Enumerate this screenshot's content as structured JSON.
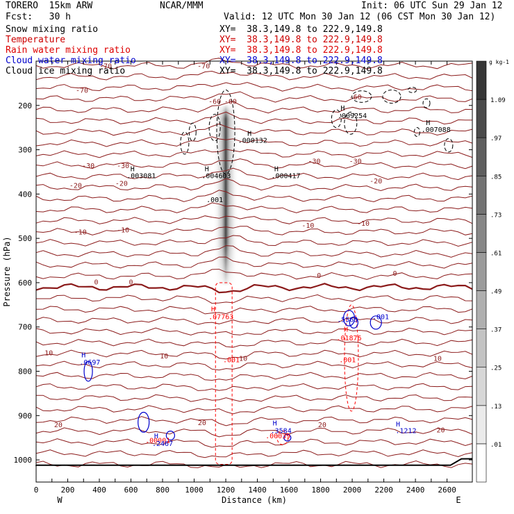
{
  "header": {
    "model": "TORERO  15km ARW",
    "center": "NCAR/MMM",
    "init": "Init: 06 UTC Sun 29 Jan 12",
    "fcst": "Fcst:   30 h",
    "valid": "Valid: 12 UTC Mon 30 Jan 12 (06 CST Mon 30 Jan 12)"
  },
  "colors": {
    "black": "#000000",
    "temperature": "#8b1a1a",
    "rain": "#ff0000",
    "cloud_water": "#0000cc",
    "frame": "#000000"
  },
  "legend": [
    {
      "label": "Snow mixing ratio",
      "xy": "XY=  38.3,149.8 to 222.9,149.8",
      "color": "#000000"
    },
    {
      "label": "Temperature",
      "xy": "XY=  38.3,149.8 to 222.9,149.8",
      "color": "#cc0000"
    },
    {
      "label": "Rain water mixing ratio",
      "xy": "XY=  38.3,149.8 to 222.9,149.8",
      "color": "#dd0000"
    },
    {
      "label": "Cloud water mixing ratio",
      "xy": "XY=  38.3,149.8 to 222.9,149.8",
      "color": "#0000cc"
    },
    {
      "label": "Cloud ice mixing ratio",
      "xy": "XY=  38.3,149.8 to 222.9,149.8",
      "color": "#000000"
    }
  ],
  "chart_data": {
    "type": "cross-section",
    "xlabel": "Distance (km)",
    "ylabel": "Pressure (hPa)",
    "x_ticks": [
      0,
      100,
      200,
      300,
      400,
      500,
      600,
      700,
      800,
      900,
      1000,
      1100,
      1200,
      1300,
      1400,
      1500,
      1600,
      1700,
      1800,
      1900,
      2000,
      2100,
      2200,
      2300,
      2400,
      2500,
      2600
    ],
    "x_tick_labels": [
      "0",
      "200",
      "400",
      "600",
      "800",
      "1000",
      "1200",
      "1400",
      "1600",
      "1800",
      "2000",
      "2200",
      "2400",
      "2600"
    ],
    "x_tick_label_values": [
      0,
      200,
      400,
      600,
      800,
      1000,
      1200,
      1400,
      1600,
      1800,
      2000,
      2200,
      2400,
      2600
    ],
    "xlim": [
      0,
      2760
    ],
    "y_ticks": [
      200,
      300,
      400,
      500,
      600,
      700,
      800,
      900,
      1000
    ],
    "ylim": [
      1050,
      100
    ],
    "left_end": "W",
    "right_end": "E",
    "colorbar": {
      "unit": "g kg-1",
      "labels": [
        ".01",
        ".13",
        ".25",
        ".37",
        ".49",
        ".61",
        ".73",
        ".85",
        ".97",
        "1.09"
      ],
      "values": [
        0.01,
        0.13,
        0.25,
        0.37,
        0.49,
        0.61,
        0.73,
        0.85,
        0.97,
        1.09
      ]
    },
    "temperature_labels": [
      {
        "x": 440,
        "p": 110,
        "text": "-70"
      },
      {
        "x": 1060,
        "p": 110,
        "text": "-70"
      },
      {
        "x": 1130,
        "p": 190,
        "text": "-60"
      },
      {
        "x": 1230,
        "p": 190,
        "text": "-60"
      },
      {
        "x": 2020,
        "p": 180,
        "text": "-60"
      },
      {
        "x": 290,
        "p": 165,
        "text": "-70"
      },
      {
        "x": 330,
        "p": 335,
        "text": "-30"
      },
      {
        "x": 550,
        "p": 335,
        "text": "-30"
      },
      {
        "x": 1760,
        "p": 325,
        "text": "-30"
      },
      {
        "x": 2020,
        "p": 325,
        "text": "-30"
      },
      {
        "x": 250,
        "p": 380,
        "text": "-20"
      },
      {
        "x": 540,
        "p": 375,
        "text": "-20"
      },
      {
        "x": 2150,
        "p": 370,
        "text": "-20"
      },
      {
        "x": 280,
        "p": 485,
        "text": "-10"
      },
      {
        "x": 550,
        "p": 480,
        "text": "-10"
      },
      {
        "x": 1720,
        "p": 470,
        "text": "-10"
      },
      {
        "x": 2070,
        "p": 465,
        "text": "-10"
      },
      {
        "x": 380,
        "p": 598,
        "text": "0"
      },
      {
        "x": 600,
        "p": 598,
        "text": "0"
      },
      {
        "x": 1790,
        "p": 583,
        "text": "0"
      },
      {
        "x": 2270,
        "p": 578,
        "text": "0"
      },
      {
        "x": 80,
        "p": 758,
        "text": "10"
      },
      {
        "x": 810,
        "p": 765,
        "text": "10"
      },
      {
        "x": 1310,
        "p": 770,
        "text": "10"
      },
      {
        "x": 2540,
        "p": 770,
        "text": "10"
      },
      {
        "x": 140,
        "p": 920,
        "text": "20"
      },
      {
        "x": 1050,
        "p": 915,
        "text": "20"
      },
      {
        "x": 1810,
        "p": 920,
        "text": "20"
      },
      {
        "x": 2560,
        "p": 932,
        "text": "20"
      }
    ],
    "snow_labels": [
      {
        "x": 1350,
        "p": 262,
        "text": "H"
      },
      {
        "x": 1370,
        "p": 278,
        "text": ".000132"
      },
      {
        "x": 1940,
        "p": 205,
        "text": "H"
      },
      {
        "x": 2000,
        "p": 222,
        "text": ".009254"
      },
      {
        "x": 2480,
        "p": 238,
        "text": "H"
      },
      {
        "x": 2530,
        "p": 254,
        "text": ".007088"
      },
      {
        "x": 610,
        "p": 342,
        "text": "H"
      },
      {
        "x": 665,
        "p": 358,
        "text": ".003081"
      },
      {
        "x": 1080,
        "p": 342,
        "text": "H"
      },
      {
        "x": 1140,
        "p": 358,
        "text": ".004603"
      },
      {
        "x": 1520,
        "p": 342,
        "text": "H"
      },
      {
        "x": 1580,
        "p": 358,
        "text": ".000417"
      },
      {
        "x": 1130,
        "p": 412,
        "text": ".001"
      }
    ],
    "rain_labels": [
      {
        "x": 1120,
        "p": 659,
        "text": "H"
      },
      {
        "x": 1170,
        "p": 676,
        "text": ".07763"
      },
      {
        "x": 1235,
        "p": 773,
        "text": ".001"
      },
      {
        "x": 1960,
        "p": 704,
        "text": "H"
      },
      {
        "x": 1980,
        "p": 724,
        "text": ".01876"
      },
      {
        "x": 1970,
        "p": 773,
        "text": ".001"
      },
      {
        "x": 770,
        "p": 955,
        "text": ".00001"
      },
      {
        "x": 1530,
        "p": 945,
        "text": ".00039"
      }
    ],
    "cloud_water_labels": [
      {
        "x": 300,
        "p": 762,
        "text": "H"
      },
      {
        "x": 340,
        "p": 779,
        "text": ".0697"
      },
      {
        "x": 1970,
        "p": 682,
        "text": ".5563"
      },
      {
        "x": 2180,
        "p": 676,
        "text": ".001"
      },
      {
        "x": 760,
        "p": 945,
        "text": "H"
      },
      {
        "x": 800,
        "p": 962,
        "text": ".2467"
      },
      {
        "x": 1510,
        "p": 916,
        "text": "H"
      },
      {
        "x": 1550,
        "p": 933,
        "text": ".3584"
      },
      {
        "x": 2290,
        "p": 918,
        "text": "H"
      },
      {
        "x": 2340,
        "p": 933,
        "text": ".1212"
      }
    ],
    "snow_shading": {
      "x_center": 1200,
      "p_top": 190,
      "p_bottom": 590,
      "max": 1.09
    }
  }
}
